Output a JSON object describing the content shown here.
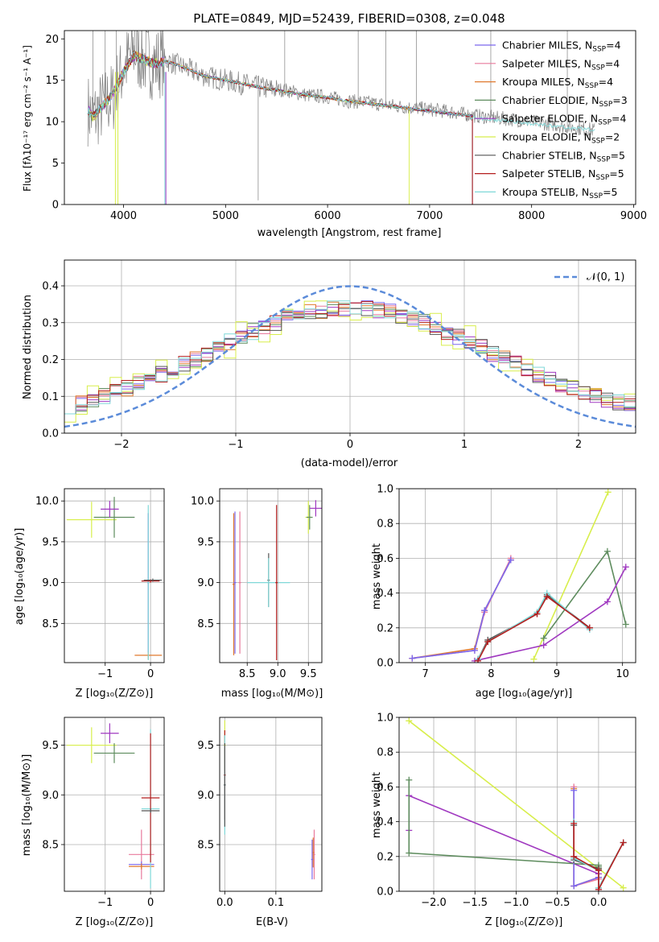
{
  "colors": {
    "chabrier_miles": "#7b68ee",
    "salpeter_miles": "#e87a9c",
    "kroupa_miles": "#e07a2e",
    "chabrier_elodie": "#5e8c5e",
    "salpeter_elodie": "#a039c0",
    "kroupa_elodie": "#d8ee4c",
    "chabrier_stelib": "#555555",
    "salpeter_stelib": "#b41e1e",
    "kroupa_stelib": "#7fd8d8",
    "data": "#808080",
    "gauss": "#5b8bd9"
  },
  "spectrum": {
    "title": "PLATE=0849, MJD=52439, FIBERID=0308, z=0.048",
    "ylabel": "Flux [fλ10⁻¹⁷ erg cm⁻² s⁻¹ A⁻¹]",
    "xlabel": "wavelength [Angstrom, rest frame]",
    "legend": [
      {
        "base": "Chabrier MILES, N",
        "sub": "SSP",
        "tail": "=4",
        "color_key": "chabrier_miles"
      },
      {
        "base": "Salpeter MILES, N",
        "sub": "SSP",
        "tail": "=4",
        "color_key": "salpeter_miles"
      },
      {
        "base": "Kroupa MILES, N",
        "sub": "SSP",
        "tail": "=4",
        "color_key": "kroupa_miles"
      },
      {
        "base": "Chabrier ELODIE, N",
        "sub": "SSP",
        "tail": "=3",
        "color_key": "chabrier_elodie"
      },
      {
        "base": "Salpeter ELODIE, N",
        "sub": "SSP",
        "tail": "=4",
        "color_key": "salpeter_elodie"
      },
      {
        "base": "Kroupa ELODIE, N",
        "sub": "SSP",
        "tail": "=2",
        "color_key": "kroupa_elodie"
      },
      {
        "base": "Chabrier STELIB, N",
        "sub": "SSP",
        "tail": "=5",
        "color_key": "chabrier_stelib"
      },
      {
        "base": "Salpeter STELIB, N",
        "sub": "SSP",
        "tail": "=5",
        "color_key": "salpeter_stelib"
      },
      {
        "base": "Kroupa STELIB, N",
        "sub": "SSP",
        "tail": "=5",
        "color_key": "kroupa_stelib"
      }
    ]
  },
  "residuals": {
    "ylabel": "Normed distribution",
    "xlabel": "(data-model)/error",
    "legend": "𝒩(0, 1)"
  },
  "age_z": {
    "ylabel": "age  [log₁₀(age/yr)]",
    "xlabel": "Z [log₁₀(Z/Z⊙)]"
  },
  "age_mass": {
    "xlabel": "mass [log₁₀(M/M⊙)]"
  },
  "weight_age": {
    "ylabel": "mass weight",
    "xlabel": "age  [log₁₀(age/yr)]"
  },
  "mass_z": {
    "ylabel": "mass [log₁₀(M/M⊙)]",
    "xlabel": "Z [log₁₀(Z/Z⊙)]"
  },
  "mass_ebv": {
    "xlabel": "E(B-V)"
  },
  "weight_z": {
    "ylabel": "mass weight",
    "xlabel": "Z [log₁₀(Z/Z⊙)]"
  },
  "chart_data": [
    {
      "type": "line",
      "title": "PLATE=0849, MJD=52439, FIBERID=0308, z=0.048",
      "xlabel": "wavelength [Angstrom, rest frame]",
      "ylabel": "Flux [fλ10⁻¹⁷ erg cm⁻² s⁻¹ A⁻¹]",
      "xlim": [
        3420,
        9020
      ],
      "ylim": [
        0,
        21
      ],
      "xticks": [
        4000,
        5000,
        6000,
        7000,
        8000,
        9000
      ],
      "yticks": [
        0,
        5,
        10,
        15,
        20
      ],
      "grid": false,
      "legend_position": "top-right",
      "data_series": {
        "name": "data",
        "x": [
          3650,
          3700,
          3800,
          3900,
          4000,
          4100,
          4200,
          4300,
          4400,
          4500,
          4600,
          4800,
          5000,
          5200,
          5400,
          5600,
          5800,
          6000,
          6200,
          6400,
          6600,
          6800,
          7000,
          7200,
          7400,
          7600,
          7800,
          8000,
          8200,
          8400,
          8600
        ],
        "y": [
          11.5,
          10.5,
          12,
          13,
          16.5,
          18.5,
          17.5,
          17,
          17.5,
          17,
          16.5,
          15.5,
          15,
          14.5,
          14,
          13.8,
          13.2,
          13,
          12.5,
          12.3,
          12,
          11.7,
          11.5,
          11.2,
          10.8,
          10.5,
          10.3,
          10,
          9.7,
          9.3,
          9
        ]
      },
      "model_series": {
        "x": [
          3650,
          3700,
          3800,
          3900,
          4000,
          4100,
          4200,
          4300,
          4400,
          4500,
          4600,
          4800,
          5000,
          5200,
          5400,
          5600,
          5800,
          6000,
          6200,
          6400,
          6600,
          6800,
          7000,
          7200,
          7400
        ],
        "y": [
          11.5,
          10.5,
          12,
          13.5,
          16,
          18,
          17.5,
          17,
          17.3,
          17,
          16.5,
          15.5,
          15,
          14.5,
          14,
          13.6,
          13.2,
          12.9,
          12.5,
          12.2,
          11.9,
          11.6,
          11.3,
          11,
          10.7
        ]
      },
      "model_end_wavelength": {
        "kroupa_elodie": 6800,
        "kroupa_miles": 7420,
        "chabrier_miles": 7420,
        "salpeter_miles": 7420,
        "kroupa_stelib": 8620
      }
    },
    {
      "type": "bar",
      "subtype": "step-histogram",
      "xlabel": "(data-model)/error",
      "ylabel": "Normed distribution",
      "xlim": [
        -2.5,
        2.5
      ],
      "ylim": [
        0,
        0.47
      ],
      "xticks": [
        -2,
        -1,
        0,
        1,
        2
      ],
      "yticks": [
        0.0,
        0.1,
        0.2,
        0.3,
        0.4
      ],
      "grid": true,
      "legend_position": "top-right",
      "bin_width": 0.1,
      "reference_curve": {
        "name": "𝒩(0, 1)",
        "mean": 0,
        "sigma": 1
      }
    },
    {
      "type": "scatter",
      "subtype": "errorbar",
      "xlabel": "Z [log₁₀(Z/Z⊙)]",
      "ylabel": "age  [log₁₀(age/yr)]",
      "xlim": [
        -1.9,
        0.3
      ],
      "ylim": [
        8.02,
        10.15
      ],
      "xticks": [
        -1,
        0
      ],
      "yticks": [
        8.5,
        9.0,
        9.5,
        10.0
      ],
      "grid": true,
      "points": [
        {
          "model": "kroupa_elodie",
          "x": -1.3,
          "y": 9.77,
          "xerr": 0.55,
          "yerr": 0.22
        },
        {
          "model": "chabrier_elodie",
          "x": -0.8,
          "y": 9.8,
          "xerr": 0.45,
          "yerr": 0.25
        },
        {
          "model": "salpeter_elodie",
          "x": -0.9,
          "y": 9.9,
          "xerr": 0.2,
          "yerr": 0.1
        },
        {
          "model": "kroupa_miles",
          "x": -0.05,
          "y": 8.11,
          "xerr": 0.3,
          "yerr": 0.05
        },
        {
          "model": "salpeter_miles",
          "x": -0.05,
          "y": 9.0,
          "xerr": 0.02,
          "yerr": 0.85
        },
        {
          "model": "chabrier_miles",
          "x": -0.05,
          "y": 9.0,
          "xerr": 0.02,
          "yerr": 0.85
        },
        {
          "model": "kroupa_stelib",
          "x": -0.05,
          "y": 9.0,
          "xerr": 0.02,
          "yerr": 0.95
        },
        {
          "model": "salpeter_stelib",
          "x": 0.0,
          "y": 9.02,
          "xerr": 0.2,
          "yerr": 0.02
        },
        {
          "model": "chabrier_stelib",
          "x": 0.05,
          "y": 9.03,
          "xerr": 0.2,
          "yerr": 0.02
        }
      ]
    },
    {
      "type": "scatter",
      "subtype": "errorbar",
      "xlabel": "mass [log₁₀(M/M⊙)]",
      "ylabel": "age  [log₁₀(age/yr)]",
      "xlim": [
        8.05,
        9.72
      ],
      "ylim": [
        8.02,
        10.15
      ],
      "xticks": [
        8.5,
        9.0,
        9.5
      ],
      "yticks": [
        8.5,
        9.0,
        9.5,
        10.0
      ],
      "grid": true,
      "points": [
        {
          "model": "kroupa_miles",
          "x": 8.28,
          "y": 8.98,
          "xerr": 0.02,
          "yerr": 0.87
        },
        {
          "model": "chabrier_miles",
          "x": 8.3,
          "y": 9.0,
          "xerr": 0.02,
          "yerr": 0.87
        },
        {
          "model": "salpeter_miles",
          "x": 8.38,
          "y": 9.0,
          "xerr": 0.02,
          "yerr": 0.87
        },
        {
          "model": "chabrier_stelib",
          "x": 8.85,
          "y": 9.03,
          "xerr": 0.02,
          "yerr": 0.33
        },
        {
          "model": "kroupa_stelib",
          "x": 8.85,
          "y": 9.0,
          "xerr": 0.35,
          "yerr": 0.3
        },
        {
          "model": "salpeter_stelib",
          "x": 8.98,
          "y": 9.0,
          "xerr": 0.02,
          "yerr": 0.95
        },
        {
          "model": "kroupa_elodie",
          "x": 9.5,
          "y": 9.8,
          "xerr": 0.05,
          "yerr": 0.2
        },
        {
          "model": "chabrier_elodie",
          "x": 9.52,
          "y": 9.8,
          "xerr": 0.05,
          "yerr": 0.15
        },
        {
          "model": "salpeter_elodie",
          "x": 9.62,
          "y": 9.91,
          "xerr": 0.1,
          "yerr": 0.1
        }
      ]
    },
    {
      "type": "line",
      "xlabel": "age  [log₁₀(age/yr)]",
      "ylabel": "mass weight",
      "xlim": [
        6.6,
        10.2
      ],
      "ylim": [
        0,
        1.0
      ],
      "xticks": [
        7,
        8,
        9,
        10
      ],
      "yticks": [
        0.0,
        0.2,
        0.4,
        0.6,
        0.8,
        1.0
      ],
      "grid": true,
      "series": [
        {
          "model": "kroupa_elodie",
          "x": [
            8.65,
            9.78
          ],
          "y": [
            0.02,
            0.98
          ]
        },
        {
          "model": "chabrier_elodie",
          "x": [
            8.8,
            9.77,
            10.05
          ],
          "y": [
            0.14,
            0.64,
            0.22
          ]
        },
        {
          "model": "salpeter_elodie",
          "x": [
            7.75,
            8.8,
            9.77,
            10.05
          ],
          "y": [
            0.01,
            0.1,
            0.35,
            0.55
          ]
        },
        {
          "model": "kroupa_miles",
          "x": [
            6.8,
            7.75,
            7.9,
            8.3
          ],
          "y": [
            0.025,
            0.08,
            0.3,
            0.59
          ]
        },
        {
          "model": "salpeter_miles",
          "x": [
            6.8,
            7.75,
            7.9,
            8.3
          ],
          "y": [
            0.025,
            0.07,
            0.29,
            0.6
          ]
        },
        {
          "model": "chabrier_miles",
          "x": [
            6.8,
            7.75,
            7.9,
            8.3
          ],
          "y": [
            0.025,
            0.07,
            0.3,
            0.59
          ]
        },
        {
          "model": "chabrier_stelib",
          "x": [
            7.8,
            7.95,
            8.7,
            8.85,
            9.5
          ],
          "y": [
            0.02,
            0.13,
            0.28,
            0.39,
            0.2
          ]
        },
        {
          "model": "kroupa_stelib",
          "x": [
            7.8,
            7.95,
            8.7,
            8.85,
            9.5
          ],
          "y": [
            0.02,
            0.12,
            0.29,
            0.4,
            0.19
          ]
        },
        {
          "model": "salpeter_stelib",
          "x": [
            7.8,
            7.95,
            8.7,
            8.85,
            9.5
          ],
          "y": [
            0.01,
            0.12,
            0.28,
            0.38,
            0.2
          ]
        }
      ]
    },
    {
      "type": "scatter",
      "subtype": "errorbar",
      "xlabel": "Z [log₁₀(Z/Z⊙)]",
      "ylabel": "mass [log₁₀(M/M⊙)]",
      "xlim": [
        -1.9,
        0.3
      ],
      "ylim": [
        8.03,
        9.78
      ],
      "xticks": [
        -1,
        0
      ],
      "yticks": [
        8.5,
        9.0,
        9.5
      ],
      "grid": true,
      "points": [
        {
          "model": "kroupa_elodie",
          "x": -1.3,
          "y": 9.5,
          "xerr": 0.55,
          "yerr": 0.18
        },
        {
          "model": "chabrier_elodie",
          "x": -0.8,
          "y": 9.42,
          "xerr": 0.45,
          "yerr": 0.1
        },
        {
          "model": "salpeter_elodie",
          "x": -0.9,
          "y": 9.62,
          "xerr": 0.2,
          "yerr": 0.1
        },
        {
          "model": "salpeter_miles",
          "x": -0.2,
          "y": 8.4,
          "xerr": 0.28,
          "yerr": 0.25
        },
        {
          "model": "chabrier_miles",
          "x": -0.2,
          "y": 8.3,
          "xerr": 0.28,
          "yerr": 0.03
        },
        {
          "model": "kroupa_miles",
          "x": -0.2,
          "y": 8.28,
          "xerr": 0.28,
          "yerr": 0.03
        },
        {
          "model": "kroupa_stelib",
          "x": 0.0,
          "y": 8.86,
          "xerr": 0.2,
          "yerr": 0.8
        },
        {
          "model": "salpeter_stelib",
          "x": 0.0,
          "y": 8.97,
          "xerr": 0.2,
          "yerr": 0.65
        },
        {
          "model": "chabrier_stelib",
          "x": 0.0,
          "y": 8.84,
          "xerr": 0.2,
          "yerr": 0.02
        }
      ]
    },
    {
      "type": "scatter",
      "subtype": "errorbar",
      "xlabel": "E(B-V)",
      "ylabel": "mass [log₁₀(M/M⊙)]",
      "xlim": [
        -0.01,
        0.19
      ],
      "ylim": [
        8.03,
        9.78
      ],
      "xticks": [
        0.0,
        0.1
      ],
      "yticks": [
        8.5,
        9.0,
        9.5
      ],
      "grid": true,
      "points": [
        {
          "model": "kroupa_elodie",
          "x": 0.0,
          "y": 9.5,
          "xerr": 0.002,
          "yerr": 0.25
        },
        {
          "model": "salpeter_stelib",
          "x": 0.0,
          "y": 9.2,
          "xerr": 0.002,
          "yerr": 0.45
        },
        {
          "model": "kroupa_stelib",
          "x": 0.0,
          "y": 9.1,
          "xerr": 0.002,
          "yerr": 0.5
        },
        {
          "model": "chabrier_stelib",
          "x": 0.0,
          "y": 9.1,
          "xerr": 0.002,
          "yerr": 0.42
        },
        {
          "model": "salpeter_miles",
          "x": 0.175,
          "y": 8.4,
          "xerr": 0.002,
          "yerr": 0.25
        },
        {
          "model": "kroupa_miles",
          "x": 0.173,
          "y": 8.42,
          "xerr": 0.002,
          "yerr": 0.15
        },
        {
          "model": "chabrier_miles",
          "x": 0.171,
          "y": 8.35,
          "xerr": 0.002,
          "yerr": 0.2
        }
      ]
    },
    {
      "type": "line",
      "xlabel": "Z [log₁₀(Z/Z⊙)]",
      "ylabel": "mass weight",
      "xlim": [
        -2.42,
        0.45
      ],
      "ylim": [
        0,
        1.0
      ],
      "xticks": [
        -2.0,
        -1.5,
        -1.0,
        -0.5,
        0.0
      ],
      "yticks": [
        0.0,
        0.2,
        0.4,
        0.6,
        0.8,
        1.0
      ],
      "grid": true,
      "series": [
        {
          "model": "kroupa_elodie",
          "x": [
            -2.3,
            0.3
          ],
          "y": [
            0.98,
            0.02
          ]
        },
        {
          "model": "salpeter_elodie",
          "x": [
            -2.3,
            -2.3,
            0.0,
            0.0
          ],
          "y": [
            0.35,
            0.55,
            0.1,
            0.01
          ]
        },
        {
          "model": "chabrier_elodie",
          "x": [
            -2.3,
            -2.3,
            0.0,
            0.0
          ],
          "y": [
            0.64,
            0.22,
            0.15,
            0.14
          ]
        },
        {
          "model": "kroupa_miles",
          "x": [
            -0.3,
            -0.3,
            0.0,
            0.0
          ],
          "y": [
            0.59,
            0.03,
            0.08,
            0.13
          ]
        },
        {
          "model": "salpeter_miles",
          "x": [
            -0.3,
            -0.3,
            0.0,
            0.0
          ],
          "y": [
            0.6,
            0.03,
            0.07,
            0.12
          ]
        },
        {
          "model": "chabrier_miles",
          "x": [
            -0.3,
            -0.3,
            0.0,
            0.0
          ],
          "y": [
            0.58,
            0.03,
            0.08,
            0.12
          ]
        },
        {
          "model": "chabrier_stelib",
          "x": [
            -0.3,
            -0.3,
            0.0,
            0.0,
            0.3
          ],
          "y": [
            0.38,
            0.18,
            0.13,
            0.02,
            0.28
          ]
        },
        {
          "model": "kroupa_stelib",
          "x": [
            -0.3,
            -0.3,
            0.0,
            0.0,
            0.3
          ],
          "y": [
            0.4,
            0.19,
            0.12,
            0.02,
            0.28
          ]
        },
        {
          "model": "salpeter_stelib",
          "x": [
            -0.3,
            -0.3,
            0.0,
            0.0,
            0.3
          ],
          "y": [
            0.39,
            0.2,
            0.12,
            0.01,
            0.28
          ]
        }
      ]
    }
  ]
}
